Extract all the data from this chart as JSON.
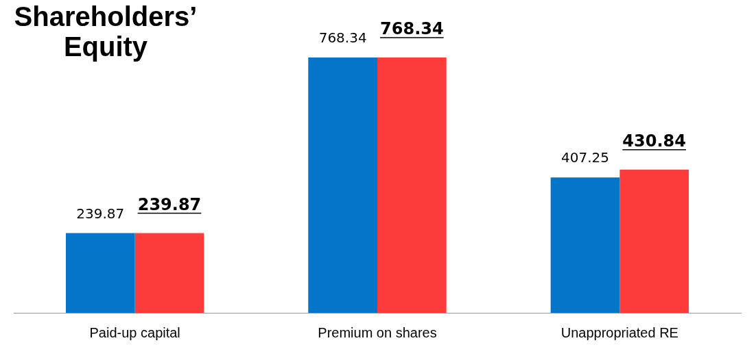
{
  "chart_data": {
    "type": "bar",
    "title": "Shareholders’ Equity",
    "categories": [
      "Paid-up capital",
      "Premium on shares",
      "Unappropriated RE"
    ],
    "series": [
      {
        "color": "#0575c9",
        "values": [
          239.87,
          768.34,
          407.25
        ]
      },
      {
        "color": "#fe3b3b",
        "values": [
          239.87,
          768.34,
          430.84
        ]
      }
    ],
    "data_labels": true,
    "grid": false,
    "legend": false
  }
}
